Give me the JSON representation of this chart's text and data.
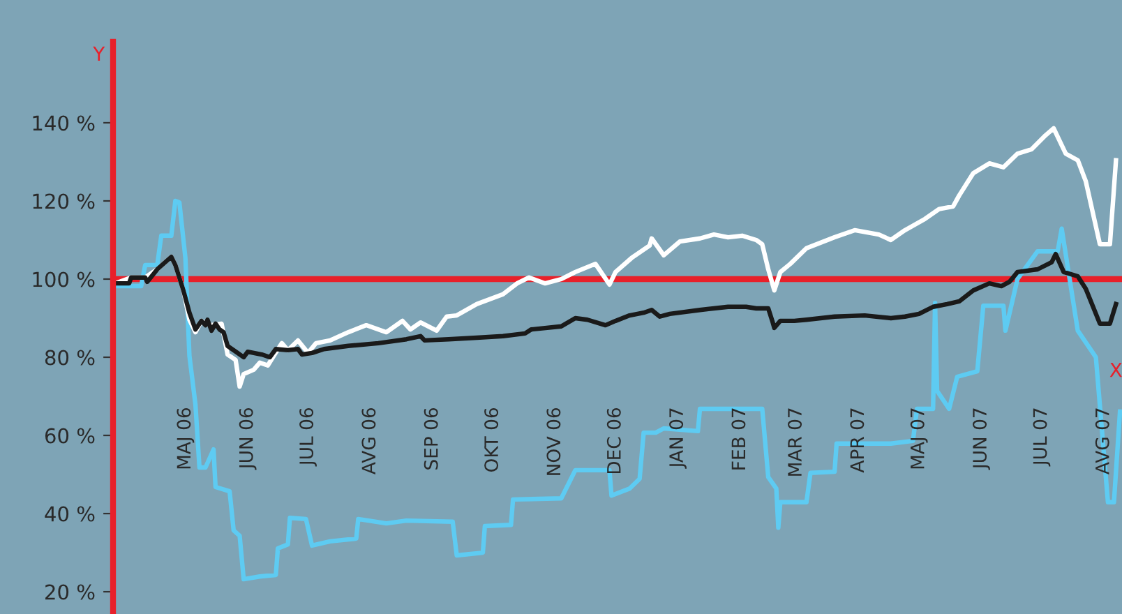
{
  "chart_data": {
    "type": "line",
    "xlabel": "X",
    "ylabel": "Y",
    "grid": false,
    "line_style": "solid",
    "xlim": [
      "2006-03-26",
      "2007-08-10"
    ],
    "ylim": [
      14.3,
      160.7
    ],
    "ref_lines": [
      {
        "axis": "y",
        "value": 100,
        "color": "#e8202a"
      }
    ],
    "xticks": [
      {
        "value": "2006-05-01",
        "label": "MAJ 06"
      },
      {
        "value": "2006-06-01",
        "label": "JUN 06"
      },
      {
        "value": "2006-07-01",
        "label": "JUL 06"
      },
      {
        "value": "2006-08-01",
        "label": "AVG 06"
      },
      {
        "value": "2006-09-01",
        "label": "SEP 06"
      },
      {
        "value": "2006-10-01",
        "label": "OKT 06"
      },
      {
        "value": "2006-11-01",
        "label": "NOV 06"
      },
      {
        "value": "2006-12-01",
        "label": "DEC 06"
      },
      {
        "value": "2007-01-01",
        "label": "JAN 07"
      },
      {
        "value": "2007-02-01",
        "label": "FEB 07"
      },
      {
        "value": "2007-03-01",
        "label": "MAR 07"
      },
      {
        "value": "2007-04-01",
        "label": "APR 07"
      },
      {
        "value": "2007-05-01",
        "label": "MAJ 07"
      },
      {
        "value": "2007-06-01",
        "label": "JUN 07"
      },
      {
        "value": "2007-07-01",
        "label": "JUL 07"
      },
      {
        "value": "2007-08-01",
        "label": "AVG 07"
      }
    ],
    "yticks": [
      {
        "value": 20,
        "label": "20 %"
      },
      {
        "value": 40,
        "label": "40 %"
      },
      {
        "value": 60,
        "label": "60 %"
      },
      {
        "value": 80,
        "label": "80 %"
      },
      {
        "value": 100,
        "label": "100 %"
      },
      {
        "value": 120,
        "label": "120 %"
      },
      {
        "value": 140,
        "label": "140 %"
      }
    ],
    "series": [
      {
        "color": "#5ecbf2",
        "x": [
          "2006-03-27",
          "2006-04-09",
          "2006-04-11",
          "2006-04-17",
          "2006-04-19",
          "2006-04-24",
          "2006-04-26",
          "2006-04-28",
          "2006-05-01",
          "2006-05-03",
          "2006-05-06",
          "2006-05-08",
          "2006-05-11",
          "2006-05-15",
          "2006-05-16",
          "2006-05-23",
          "2006-05-25",
          "2006-05-28",
          "2006-05-30",
          "2006-06-07",
          "2006-06-15",
          "2006-06-16",
          "2006-06-21",
          "2006-06-22",
          "2006-06-30",
          "2006-07-03",
          "2006-07-12",
          "2006-07-25",
          "2006-07-26",
          "2006-08-09",
          "2006-08-19",
          "2006-09-11",
          "2006-09-13",
          "2006-09-26",
          "2006-09-27",
          "2006-10-10",
          "2006-10-11",
          "2006-11-04",
          "2006-11-11",
          "2006-11-28",
          "2006-11-29",
          "2006-12-08",
          "2006-12-13",
          "2006-12-15",
          "2006-12-21",
          "2006-12-25",
          "2007-01-11",
          "2007-01-12",
          "2007-01-29",
          "2007-02-12",
          "2007-02-15",
          "2007-02-19",
          "2007-02-20",
          "2007-02-21",
          "2007-03-06",
          "2007-03-08",
          "2007-03-20",
          "2007-03-21",
          "2007-04-04",
          "2007-04-17",
          "2007-04-28",
          "2007-04-30",
          "2007-05-08",
          "2007-05-09",
          "2007-05-10",
          "2007-05-16",
          "2007-05-20",
          "2007-05-30",
          "2007-06-02",
          "2007-06-12",
          "2007-06-13",
          "2007-06-19",
          "2007-06-29",
          "2007-07-09",
          "2007-07-11",
          "2007-07-19",
          "2007-07-28",
          "2007-08-03",
          "2007-08-06",
          "2007-08-09"
        ],
        "values": [
          98.2,
          98.2,
          103.6,
          103.6,
          111.1,
          111.1,
          120,
          119.6,
          105.4,
          80.4,
          67.9,
          51.8,
          51.8,
          56.4,
          46.8,
          45.7,
          35.7,
          34.3,
          23.2,
          23.9,
          24.3,
          31.1,
          32.1,
          38.9,
          38.6,
          31.8,
          32.9,
          33.6,
          38.6,
          37.5,
          38.2,
          37.9,
          29.3,
          30,
          36.8,
          37.1,
          43.6,
          43.9,
          51.1,
          51.1,
          44.6,
          46.4,
          48.9,
          60.7,
          60.7,
          61.8,
          61.1,
          66.8,
          66.8,
          66.8,
          49.3,
          46.4,
          36.4,
          42.9,
          42.9,
          50.4,
          50.7,
          57.9,
          57.9,
          57.9,
          58.6,
          66.8,
          66.8,
          93.9,
          71.4,
          66.8,
          75,
          76.4,
          93.2,
          93.2,
          86.8,
          100,
          107.1,
          107.1,
          112.9,
          86.8,
          80,
          42.9,
          42.9,
          66.1
        ]
      },
      {
        "color": "#ffffff",
        "x": [
          "2006-03-27",
          "2006-04-04",
          "2006-04-11",
          "2006-04-17",
          "2006-04-24",
          "2006-04-26",
          "2006-04-30",
          "2006-05-03",
          "2006-05-06",
          "2006-05-09",
          "2006-05-13",
          "2006-05-19",
          "2006-05-22",
          "2006-05-26",
          "2006-05-28",
          "2006-05-30",
          "2006-06-04",
          "2006-06-07",
          "2006-06-11",
          "2006-06-14",
          "2006-06-18",
          "2006-06-21",
          "2006-06-26",
          "2006-07-01",
          "2006-07-05",
          "2006-07-12",
          "2006-07-21",
          "2006-07-30",
          "2006-08-09",
          "2006-08-17",
          "2006-08-21",
          "2006-08-26",
          "2006-09-03",
          "2006-09-08",
          "2006-09-13",
          "2006-09-23",
          "2006-10-06",
          "2006-10-13",
          "2006-10-19",
          "2006-10-27",
          "2006-11-04",
          "2006-11-11",
          "2006-11-21",
          "2006-11-28",
          "2006-12-01",
          "2006-12-09",
          "2006-12-18",
          "2006-12-19",
          "2006-12-25",
          "2007-01-02",
          "2007-01-12",
          "2007-01-19",
          "2007-01-26",
          "2007-02-02",
          "2007-02-09",
          "2007-02-12",
          "2007-02-15",
          "2007-02-18",
          "2007-02-21",
          "2007-02-26",
          "2007-03-06",
          "2007-03-20",
          "2007-03-30",
          "2007-04-11",
          "2007-04-17",
          "2007-04-24",
          "2007-05-04",
          "2007-05-11",
          "2007-05-18",
          "2007-05-21",
          "2007-05-28",
          "2007-06-05",
          "2007-06-12",
          "2007-06-19",
          "2007-06-26",
          "2007-07-03",
          "2007-07-07",
          "2007-07-13",
          "2007-07-19",
          "2007-07-23",
          "2007-07-30",
          "2007-08-04",
          "2007-08-07"
        ],
        "values": [
          98.9,
          100.4,
          100.4,
          102.5,
          105.7,
          103.6,
          97.1,
          89.6,
          86.4,
          89.3,
          88.2,
          88.6,
          80.7,
          79.3,
          72.5,
          75.7,
          76.8,
          78.6,
          77.9,
          80.4,
          83.6,
          81.8,
          84.3,
          81.1,
          83.6,
          84.3,
          86.4,
          88.2,
          86.4,
          89.3,
          87.1,
          88.9,
          86.8,
          90.4,
          90.7,
          93.6,
          96.1,
          98.9,
          100.4,
          98.9,
          100,
          101.8,
          103.9,
          98.6,
          101.8,
          105.4,
          108.6,
          110.4,
          106.1,
          109.6,
          110.4,
          111.4,
          110.7,
          111.1,
          110,
          108.9,
          102.5,
          97.1,
          101.8,
          103.9,
          107.9,
          110.7,
          112.5,
          111.4,
          110,
          112.5,
          115.4,
          117.9,
          118.6,
          121.4,
          127.1,
          129.6,
          128.6,
          132.1,
          133.2,
          136.8,
          138.6,
          132.1,
          130.4,
          125,
          108.9,
          108.9,
          130.4
        ]
      },
      {
        "color": "#1a1a1a",
        "x": [
          "2006-03-27",
          "2006-04-03",
          "2006-04-04",
          "2006-04-11",
          "2006-04-12",
          "2006-04-17",
          "2006-04-24",
          "2006-04-26",
          "2006-04-30",
          "2006-05-03",
          "2006-05-06",
          "2006-05-09",
          "2006-05-11",
          "2006-05-12",
          "2006-05-14",
          "2006-05-16",
          "2006-05-18",
          "2006-05-20",
          "2006-05-22",
          "2006-05-27",
          "2006-05-30",
          "2006-06-01",
          "2006-06-08",
          "2006-06-12",
          "2006-06-15",
          "2006-06-21",
          "2006-06-26",
          "2006-06-28",
          "2006-07-03",
          "2006-07-09",
          "2006-07-21",
          "2006-08-05",
          "2006-08-19",
          "2006-08-26",
          "2006-08-28",
          "2006-09-09",
          "2006-09-23",
          "2006-10-06",
          "2006-10-17",
          "2006-10-20",
          "2006-11-04",
          "2006-11-11",
          "2006-11-17",
          "2006-11-26",
          "2006-12-01",
          "2006-12-08",
          "2006-12-15",
          "2006-12-19",
          "2006-12-23",
          "2006-12-28",
          "2007-01-12",
          "2007-01-26",
          "2007-02-04",
          "2007-02-09",
          "2007-02-15",
          "2007-02-17",
          "2007-02-18",
          "2007-02-21",
          "2007-02-28",
          "2007-03-06",
          "2007-03-20",
          "2007-04-04",
          "2007-04-17",
          "2007-04-24",
          "2007-05-01",
          "2007-05-08",
          "2007-05-15",
          "2007-05-21",
          "2007-05-28",
          "2007-06-05",
          "2007-06-11",
          "2007-06-15",
          "2007-06-19",
          "2007-06-29",
          "2007-07-06",
          "2007-07-08",
          "2007-07-12",
          "2007-07-19",
          "2007-07-23",
          "2007-07-30",
          "2007-08-04",
          "2007-08-07"
        ],
        "values": [
          98.9,
          98.9,
          100.4,
          100.4,
          99.3,
          102.5,
          105.7,
          103.6,
          97.1,
          91.4,
          87.1,
          89.3,
          88.2,
          89.6,
          86.8,
          88.6,
          87.1,
          86.4,
          82.9,
          81.1,
          80,
          81.4,
          80.7,
          80,
          82.1,
          81.8,
          82.1,
          80.7,
          81.1,
          82.1,
          82.9,
          83.6,
          84.6,
          85.4,
          84.3,
          84.6,
          85,
          85.4,
          86.1,
          87.1,
          87.9,
          90,
          89.6,
          88.2,
          89.3,
          90.7,
          91.4,
          92.1,
          90.4,
          91.1,
          92.1,
          92.9,
          92.9,
          92.5,
          92.5,
          89.3,
          87.5,
          89.3,
          89.3,
          89.6,
          90.4,
          90.7,
          90,
          90.4,
          91.1,
          92.9,
          93.6,
          94.3,
          97.1,
          98.9,
          98.2,
          99.3,
          101.8,
          102.5,
          104.3,
          106.4,
          101.8,
          100.7,
          97.5,
          88.6,
          88.6,
          93.6
        ]
      }
    ]
  }
}
